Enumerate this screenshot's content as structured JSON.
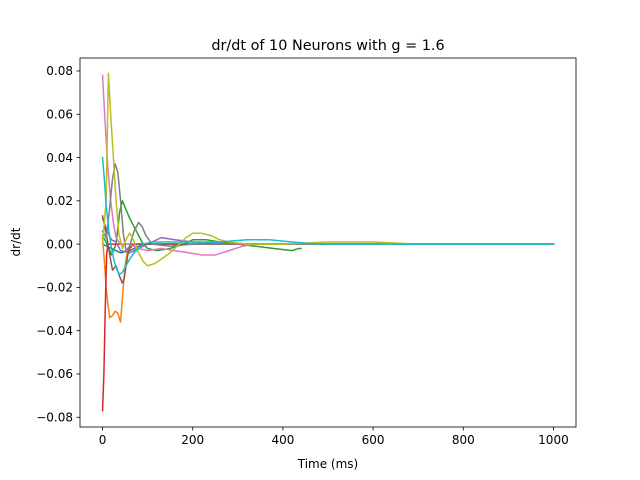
{
  "chart_data": {
    "type": "line",
    "title": "dr/dt of 10 Neurons with g = 1.6",
    "xlabel": "Time (ms)",
    "ylabel": "dr/dt",
    "xlim": [
      -50,
      1050
    ],
    "ylim": [
      -0.0845,
      0.086
    ],
    "xticks": [
      0,
      200,
      400,
      600,
      800,
      1000
    ],
    "xtick_labels": [
      "0",
      "200",
      "400",
      "600",
      "800",
      "1000"
    ],
    "yticks": [
      -0.08,
      -0.06,
      -0.04,
      -0.02,
      0.0,
      0.02,
      0.04,
      0.06,
      0.08
    ],
    "ytick_labels": [
      "−0.08",
      "−0.06",
      "−0.04",
      "−0.02",
      "0.00",
      "0.02",
      "0.04",
      "0.06",
      "0.08"
    ],
    "grid": false,
    "legend": "none",
    "series": [
      {
        "color": "#1f77b4",
        "points": [
          [
            0,
            0.0
          ],
          [
            20,
            -0.002
          ],
          [
            40,
            -0.004
          ],
          [
            60,
            -0.003
          ],
          [
            80,
            -0.001
          ],
          [
            100,
            0.0
          ],
          [
            200,
            0.0
          ],
          [
            1000,
            0.0
          ]
        ]
      },
      {
        "color": "#ff7f0e",
        "points": [
          [
            0,
            0.003
          ],
          [
            4,
            -0.008
          ],
          [
            8,
            -0.02
          ],
          [
            12,
            -0.028
          ],
          [
            16,
            -0.034
          ],
          [
            22,
            -0.033
          ],
          [
            28,
            -0.031
          ],
          [
            34,
            -0.032
          ],
          [
            40,
            -0.036
          ],
          [
            45,
            -0.022
          ],
          [
            50,
            -0.01
          ],
          [
            55,
            -0.004
          ],
          [
            60,
            -0.001
          ],
          [
            80,
            0.0
          ],
          [
            200,
            0.0
          ],
          [
            1000,
            0.0
          ]
        ]
      },
      {
        "color": "#2ca02c",
        "points": [
          [
            0,
            0.004
          ],
          [
            10,
            0.0
          ],
          [
            20,
            -0.005
          ],
          [
            30,
            0.0
          ],
          [
            38,
            0.015
          ],
          [
            44,
            0.02
          ],
          [
            50,
            0.017
          ],
          [
            60,
            0.012
          ],
          [
            70,
            0.008
          ],
          [
            80,
            0.004
          ],
          [
            90,
            0.0
          ],
          [
            100,
            -0.002
          ],
          [
            120,
            -0.003
          ],
          [
            150,
            -0.002
          ],
          [
            180,
            0.0
          ],
          [
            200,
            0.002
          ],
          [
            230,
            0.002
          ],
          [
            260,
            0.001
          ],
          [
            300,
            0.0
          ],
          [
            340,
            -0.001
          ],
          [
            380,
            -0.002
          ],
          [
            420,
            -0.003
          ],
          [
            435,
            -0.002
          ],
          [
            440,
            -0.002
          ]
        ]
      },
      {
        "color": "#d62728",
        "points": [
          [
            0,
            -0.077
          ],
          [
            3,
            -0.06
          ],
          [
            6,
            -0.03
          ],
          [
            9,
            -0.005
          ],
          [
            12,
            0.0
          ],
          [
            30,
            0.0
          ],
          [
            60,
            0.0
          ],
          [
            1000,
            0.0
          ]
        ]
      },
      {
        "color": "#9467bd",
        "points": [
          [
            0,
            0.012
          ],
          [
            10,
            0.006
          ],
          [
            20,
            0.002
          ],
          [
            30,
            0.001
          ],
          [
            40,
            -0.003
          ],
          [
            60,
            -0.004
          ],
          [
            80,
            -0.002
          ],
          [
            100,
            0.0
          ],
          [
            130,
            0.003
          ],
          [
            160,
            0.002
          ],
          [
            200,
            0.001
          ],
          [
            300,
            0.0
          ],
          [
            1000,
            0.0
          ]
        ]
      },
      {
        "color": "#8c564b",
        "points": [
          [
            0,
            0.013
          ],
          [
            8,
            0.005
          ],
          [
            16,
            -0.005
          ],
          [
            22,
            -0.012
          ],
          [
            30,
            -0.01
          ],
          [
            38,
            -0.015
          ],
          [
            44,
            -0.018
          ],
          [
            48,
            -0.016
          ],
          [
            52,
            -0.01
          ],
          [
            56,
            -0.005
          ],
          [
            60,
            -0.002
          ],
          [
            70,
            0.0
          ],
          [
            100,
            0.0
          ],
          [
            1000,
            0.0
          ]
        ]
      },
      {
        "color": "#e377c2",
        "points": [
          [
            0,
            0.078
          ],
          [
            6,
            0.055
          ],
          [
            12,
            0.035
          ],
          [
            18,
            0.02
          ],
          [
            24,
            0.01
          ],
          [
            30,
            0.003
          ],
          [
            40,
            0.0
          ],
          [
            60,
            0.0
          ],
          [
            80,
            -0.002
          ],
          [
            100,
            -0.003
          ],
          [
            130,
            -0.002
          ],
          [
            160,
            -0.003
          ],
          [
            190,
            -0.004
          ],
          [
            220,
            -0.005
          ],
          [
            250,
            -0.005
          ],
          [
            280,
            -0.003
          ],
          [
            310,
            -0.001
          ],
          [
            340,
            0.0
          ],
          [
            400,
            0.0
          ],
          [
            1000,
            0.0
          ]
        ]
      },
      {
        "color": "#7f7f7f",
        "points": [
          [
            0,
            0.006
          ],
          [
            8,
            0.003
          ],
          [
            15,
            0.015
          ],
          [
            22,
            0.03
          ],
          [
            28,
            0.037
          ],
          [
            34,
            0.033
          ],
          [
            40,
            0.02
          ],
          [
            46,
            0.005
          ],
          [
            52,
            -0.003
          ],
          [
            60,
            -0.001
          ],
          [
            70,
            0.006
          ],
          [
            80,
            0.01
          ],
          [
            88,
            0.008
          ],
          [
            96,
            0.004
          ],
          [
            110,
            0.0
          ],
          [
            150,
            -0.001
          ],
          [
            200,
            0.0
          ],
          [
            1000,
            0.0
          ]
        ]
      },
      {
        "color": "#bcbd22",
        "points": [
          [
            0,
            0.0
          ],
          [
            8,
            0.02
          ],
          [
            13,
            0.079
          ],
          [
            18,
            0.06
          ],
          [
            24,
            0.04
          ],
          [
            30,
            0.02
          ],
          [
            36,
            0.005
          ],
          [
            44,
            -0.002
          ],
          [
            52,
            0.002
          ],
          [
            60,
            0.005
          ],
          [
            66,
            0.003
          ],
          [
            72,
            0.0
          ],
          [
            80,
            -0.004
          ],
          [
            90,
            -0.008
          ],
          [
            100,
            -0.01
          ],
          [
            115,
            -0.009
          ],
          [
            130,
            -0.007
          ],
          [
            150,
            -0.004
          ],
          [
            170,
            0.0
          ],
          [
            185,
            0.003
          ],
          [
            200,
            0.005
          ],
          [
            220,
            0.005
          ],
          [
            240,
            0.004
          ],
          [
            260,
            0.002
          ],
          [
            280,
            0.001
          ],
          [
            320,
            0.0
          ],
          [
            360,
            0.0
          ],
          [
            400,
            0.0
          ],
          [
            500,
            0.001
          ],
          [
            600,
            0.001
          ],
          [
            700,
            0.0
          ],
          [
            1000,
            0.0
          ]
        ]
      },
      {
        "color": "#17becf",
        "points": [
          [
            0,
            0.04
          ],
          [
            4,
            0.03
          ],
          [
            8,
            0.018
          ],
          [
            14,
            0.006
          ],
          [
            20,
            -0.002
          ],
          [
            26,
            -0.008
          ],
          [
            32,
            -0.012
          ],
          [
            38,
            -0.014
          ],
          [
            44,
            -0.013
          ],
          [
            52,
            -0.01
          ],
          [
            60,
            -0.007
          ],
          [
            70,
            -0.004
          ],
          [
            80,
            -0.002
          ],
          [
            90,
            0.0
          ],
          [
            110,
            0.001
          ],
          [
            150,
            0.001
          ],
          [
            200,
            0.001
          ],
          [
            260,
            0.001
          ],
          [
            320,
            0.002
          ],
          [
            370,
            0.002
          ],
          [
            420,
            0.001
          ],
          [
            480,
            0.0
          ],
          [
            600,
            0.0
          ],
          [
            1000,
            0.0
          ]
        ]
      }
    ]
  }
}
